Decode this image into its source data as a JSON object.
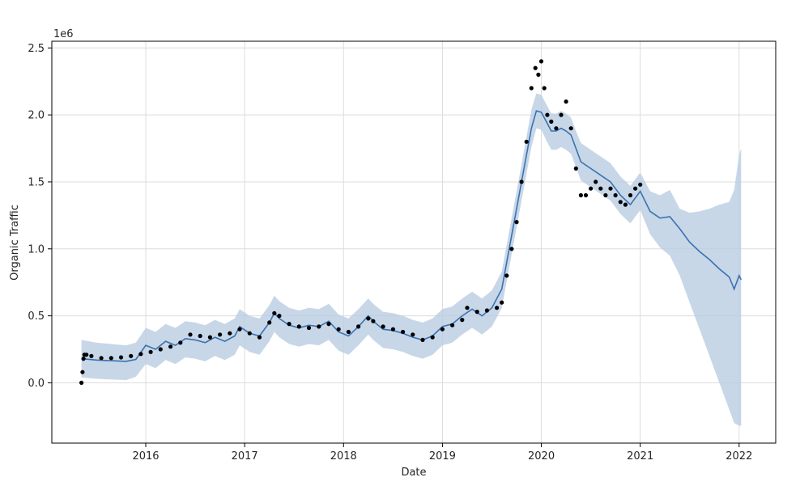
{
  "chart_data": {
    "type": "line",
    "title": "",
    "xlabel": "Date",
    "ylabel": "Organic Traffic",
    "y_scale_label": "1e6",
    "xlim": [
      2015.05,
      2022.37
    ],
    "ylim": [
      -450000,
      2550000
    ],
    "x_ticks": [
      2016,
      2017,
      2018,
      2019,
      2020,
      2021,
      2022
    ],
    "x_tick_labels": [
      "2016",
      "2017",
      "2018",
      "2019",
      "2020",
      "2021",
      "2022"
    ],
    "y_ticks": [
      0,
      500000,
      1000000,
      1500000,
      2000000,
      2500000
    ],
    "y_tick_labels": [
      "0.0",
      "0.5",
      "1.0",
      "1.5",
      "2.0",
      "2.5"
    ],
    "grid": true,
    "colors": {
      "forecast": "#3a72b0",
      "band": "#b9cde2",
      "actual": "#000000",
      "grid": "#dcdcdc"
    },
    "series": [
      {
        "role": "observed",
        "marker": "dot",
        "x": [
          2015.35,
          2015.36,
          2015.37,
          2015.38,
          2015.4,
          2015.45,
          2015.55,
          2015.65,
          2015.75,
          2015.85,
          2015.95,
          2016.05,
          2016.15,
          2016.25,
          2016.35,
          2016.45,
          2016.55,
          2016.65,
          2016.75,
          2016.85,
          2016.95,
          2017.05,
          2017.15,
          2017.25,
          2017.3,
          2017.35,
          2017.45,
          2017.55,
          2017.65,
          2017.75,
          2017.85,
          2017.95,
          2018.05,
          2018.15,
          2018.25,
          2018.3,
          2018.4,
          2018.5,
          2018.6,
          2018.7,
          2018.8,
          2018.9,
          2019.0,
          2019.1,
          2019.2,
          2019.25,
          2019.35,
          2019.45,
          2019.55,
          2019.6,
          2019.65,
          2019.7,
          2019.75,
          2019.8,
          2019.85,
          2019.9,
          2019.94,
          2019.97,
          2020.0,
          2020.03,
          2020.06,
          2020.1,
          2020.15,
          2020.2,
          2020.25,
          2020.3,
          2020.35,
          2020.4,
          2020.45,
          2020.5,
          2020.55,
          2020.6,
          2020.65,
          2020.7,
          2020.75,
          2020.8,
          2020.85,
          2020.9,
          2020.95,
          2021.0
        ],
        "values": [
          0,
          80000,
          180000,
          210000,
          210000,
          200000,
          185000,
          185000,
          190000,
          200000,
          215000,
          230000,
          250000,
          270000,
          300000,
          360000,
          350000,
          340000,
          360000,
          370000,
          400000,
          370000,
          340000,
          450000,
          520000,
          500000,
          440000,
          420000,
          410000,
          420000,
          440000,
          400000,
          380000,
          420000,
          480000,
          460000,
          420000,
          400000,
          380000,
          360000,
          320000,
          340000,
          400000,
          430000,
          470000,
          560000,
          530000,
          540000,
          560000,
          600000,
          800000,
          1000000,
          1200000,
          1500000,
          1800000,
          2200000,
          2350000,
          2300000,
          2400000,
          2200000,
          2000000,
          1950000,
          1900000,
          2000000,
          2100000,
          1900000,
          1600000,
          1400000,
          1400000,
          1450000,
          1500000,
          1450000,
          1400000,
          1450000,
          1400000,
          1350000,
          1330000,
          1400000,
          1450000,
          1480000
        ]
      },
      {
        "role": "forecast",
        "x": [
          2015.35,
          2015.5,
          2015.65,
          2015.8,
          2015.9,
          2016.0,
          2016.1,
          2016.2,
          2016.3,
          2016.4,
          2016.5,
          2016.6,
          2016.7,
          2016.8,
          2016.9,
          2016.95,
          2017.05,
          2017.15,
          2017.25,
          2017.3,
          2017.35,
          2017.45,
          2017.55,
          2017.65,
          2017.75,
          2017.85,
          2017.95,
          2018.05,
          2018.15,
          2018.25,
          2018.3,
          2018.4,
          2018.5,
          2018.6,
          2018.7,
          2018.8,
          2018.9,
          2019.0,
          2019.1,
          2019.2,
          2019.3,
          2019.4,
          2019.5,
          2019.6,
          2019.7,
          2019.8,
          2019.9,
          2019.95,
          2020.0,
          2020.05,
          2020.1,
          2020.15,
          2020.2,
          2020.25,
          2020.3,
          2020.35,
          2020.4,
          2020.5,
          2020.6,
          2020.7,
          2020.8,
          2020.9,
          2021.0,
          2021.1,
          2021.2,
          2021.3,
          2021.4,
          2021.5,
          2021.6,
          2021.7,
          2021.8,
          2021.9,
          2021.95,
          2022.0,
          2022.02
        ],
        "values": [
          180000,
          170000,
          165000,
          160000,
          175000,
          280000,
          250000,
          310000,
          280000,
          330000,
          320000,
          300000,
          340000,
          310000,
          350000,
          420000,
          370000,
          350000,
          450000,
          520000,
          480000,
          430000,
          410000,
          430000,
          420000,
          460000,
          380000,
          350000,
          420000,
          500000,
          460000,
          400000,
          390000,
          370000,
          340000,
          320000,
          350000,
          420000,
          440000,
          500000,
          550000,
          500000,
          560000,
          700000,
          1100000,
          1500000,
          1900000,
          2030000,
          2020000,
          1950000,
          1880000,
          1880000,
          1900000,
          1880000,
          1850000,
          1750000,
          1650000,
          1600000,
          1550000,
          1500000,
          1400000,
          1330000,
          1430000,
          1280000,
          1230000,
          1240000,
          1150000,
          1050000,
          980000,
          920000,
          850000,
          790000,
          700000,
          800000,
          770000
        ]
      },
      {
        "role": "uncertainty-interval",
        "x": [
          2015.35,
          2015.5,
          2015.65,
          2015.8,
          2015.9,
          2016.0,
          2016.1,
          2016.2,
          2016.3,
          2016.4,
          2016.5,
          2016.6,
          2016.7,
          2016.8,
          2016.9,
          2016.95,
          2017.05,
          2017.15,
          2017.25,
          2017.3,
          2017.35,
          2017.45,
          2017.55,
          2017.65,
          2017.75,
          2017.85,
          2017.95,
          2018.05,
          2018.15,
          2018.25,
          2018.3,
          2018.4,
          2018.5,
          2018.6,
          2018.7,
          2018.8,
          2018.9,
          2019.0,
          2019.1,
          2019.2,
          2019.3,
          2019.4,
          2019.5,
          2019.6,
          2019.7,
          2019.8,
          2019.9,
          2019.95,
          2020.0,
          2020.05,
          2020.1,
          2020.15,
          2020.2,
          2020.25,
          2020.3,
          2020.35,
          2020.4,
          2020.5,
          2020.6,
          2020.7,
          2020.8,
          2020.9,
          2021.0,
          2021.1,
          2021.2,
          2021.3,
          2021.4,
          2021.5,
          2021.6,
          2021.7,
          2021.8,
          2021.9,
          2021.95,
          2022.0,
          2022.02
        ],
        "upper": [
          320000,
          300000,
          290000,
          280000,
          300000,
          410000,
          380000,
          440000,
          410000,
          460000,
          450000,
          430000,
          470000,
          440000,
          480000,
          550000,
          500000,
          480000,
          580000,
          650000,
          610000,
          560000,
          540000,
          560000,
          550000,
          590000,
          510000,
          480000,
          550000,
          630000,
          590000,
          530000,
          520000,
          500000,
          470000,
          450000,
          480000,
          550000,
          570000,
          630000,
          680000,
          630000,
          690000,
          830000,
          1230000,
          1630000,
          2040000,
          2160000,
          2150000,
          2080000,
          2010000,
          2010000,
          2030000,
          2010000,
          1980000,
          1880000,
          1790000,
          1740000,
          1690000,
          1640000,
          1540000,
          1470000,
          1570000,
          1430000,
          1400000,
          1440000,
          1300000,
          1270000,
          1280000,
          1300000,
          1330000,
          1350000,
          1440000,
          1700000,
          1750000
        ],
        "lower": [
          40000,
          30000,
          25000,
          20000,
          45000,
          140000,
          110000,
          170000,
          140000,
          190000,
          180000,
          160000,
          200000,
          170000,
          210000,
          280000,
          230000,
          210000,
          310000,
          380000,
          340000,
          290000,
          270000,
          290000,
          280000,
          320000,
          240000,
          210000,
          280000,
          360000,
          320000,
          260000,
          250000,
          230000,
          200000,
          180000,
          210000,
          280000,
          300000,
          360000,
          410000,
          360000,
          420000,
          560000,
          960000,
          1360000,
          1760000,
          1900000,
          1890000,
          1810000,
          1740000,
          1740000,
          1760000,
          1740000,
          1710000,
          1610000,
          1510000,
          1460000,
          1410000,
          1360000,
          1260000,
          1190000,
          1290000,
          1110000,
          1010000,
          950000,
          800000,
          600000,
          400000,
          200000,
          0,
          -200000,
          -300000,
          -320000,
          -320000
        ]
      }
    ]
  }
}
